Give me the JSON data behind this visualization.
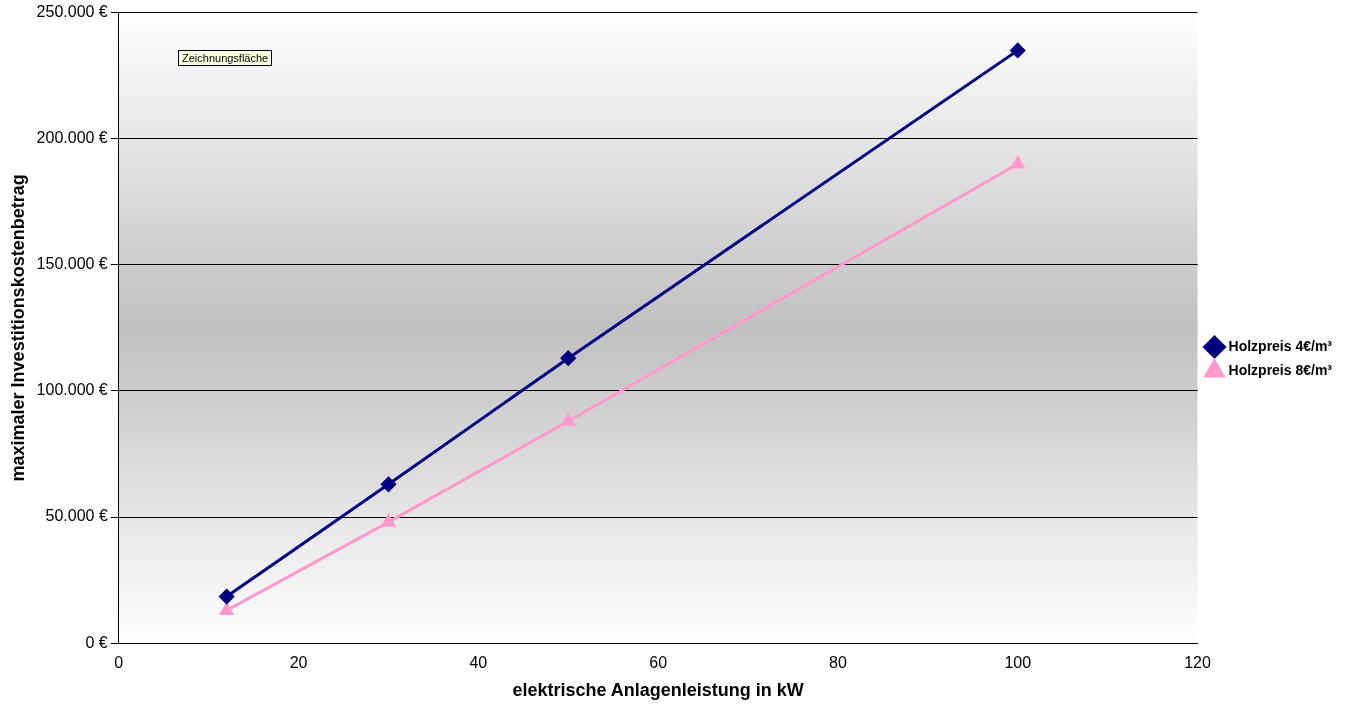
{
  "chart_data": {
    "type": "line",
    "xlabel": "elektrische Anlagenleistung in kW",
    "ylabel": "maximaler Investitionskostenbetrag",
    "annotations": [
      "Zeichnungsfläche"
    ],
    "x": [
      12,
      30,
      50,
      100
    ],
    "series": [
      {
        "name": "Holzpreis 4€/m³",
        "color": "#000080",
        "marker": "diamond",
        "values": [
          18500,
          63000,
          113000,
          235000
        ]
      },
      {
        "name": "Holzpreis 8€/m³",
        "color": "#ff99cc",
        "marker": "triangle",
        "values": [
          13000,
          48000,
          88000,
          190000
        ]
      }
    ],
    "xlim": [
      0,
      120
    ],
    "xticks": [
      0,
      20,
      40,
      60,
      80,
      100,
      120
    ],
    "ylim": [
      0,
      250000
    ],
    "yticks": [
      {
        "value": 0,
        "label": "0 €"
      },
      {
        "value": 50000,
        "label": "50.000 €"
      },
      {
        "value": 100000,
        "label": "100.000 €"
      },
      {
        "value": 150000,
        "label": "150.000 €"
      },
      {
        "value": 200000,
        "label": "200.000 €"
      },
      {
        "value": 250000,
        "label": "250.000 €"
      }
    ],
    "grid": "y",
    "legend": "right"
  }
}
